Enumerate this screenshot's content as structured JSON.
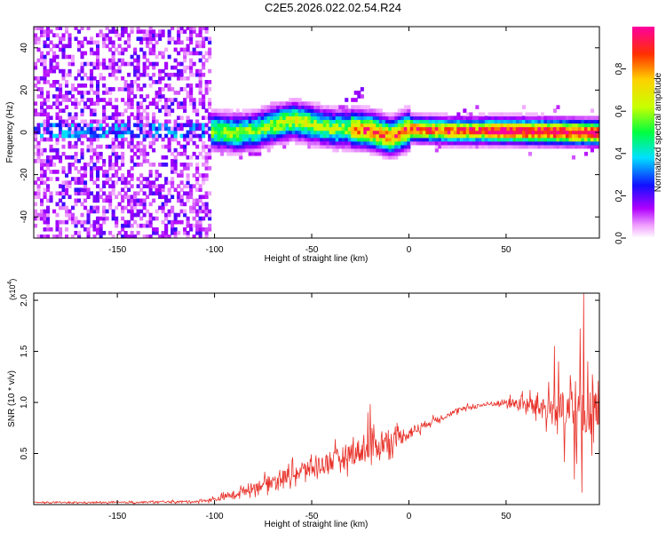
{
  "title": "C2E5.2026.022.02.54.R24",
  "colors": {
    "line": "#e8322a",
    "axis": "#000000",
    "background": "#ffffff"
  },
  "chart_data": [
    {
      "type": "heatmap",
      "name": "spectrogram",
      "xlabel": "Height of straight line (km)",
      "ylabel": "Frequency (Hz)",
      "xlim": [
        -193,
        98
      ],
      "ylim": [
        -50,
        50
      ],
      "xticks": [
        -150,
        -100,
        -50,
        0,
        50
      ],
      "yticks": [
        -40,
        -20,
        0,
        20,
        40
      ],
      "colorbar": {
        "label": "Normalized spectral amplitude",
        "range": [
          0.0,
          1.0
        ],
        "ticks": [
          0.0,
          0.2,
          0.4,
          0.6,
          0.8
        ],
        "tick_labels": [
          "0.0",
          "0.2",
          "0.4",
          "0.6",
          "0.8"
        ],
        "stops": [
          {
            "v": 0.0,
            "color": "#ffffff"
          },
          {
            "v": 0.06,
            "color": "#f0a0ff"
          },
          {
            "v": 0.14,
            "color": "#b000ff"
          },
          {
            "v": 0.25,
            "color": "#1010ff"
          },
          {
            "v": 0.38,
            "color": "#00e0ff"
          },
          {
            "v": 0.5,
            "color": "#00ff40"
          },
          {
            "v": 0.62,
            "color": "#c8ff00"
          },
          {
            "v": 0.75,
            "color": "#ffd000"
          },
          {
            "v": 0.87,
            "color": "#ff3000"
          },
          {
            "v": 1.0,
            "color": "#ff00a0"
          }
        ]
      },
      "ridge": [
        {
          "x": -193,
          "y": 0
        },
        {
          "x": -100,
          "y": 0
        },
        {
          "x": -90,
          "y": -1
        },
        {
          "x": -80,
          "y": 0
        },
        {
          "x": -70,
          "y": 3
        },
        {
          "x": -60,
          "y": 5
        },
        {
          "x": -50,
          "y": 3
        },
        {
          "x": -40,
          "y": 1
        },
        {
          "x": -30,
          "y": 1
        },
        {
          "x": -20,
          "y": 0
        },
        {
          "x": -10,
          "y": -3
        },
        {
          "x": 0,
          "y": 1
        },
        {
          "x": 20,
          "y": 0
        },
        {
          "x": 50,
          "y": 0
        },
        {
          "x": 98,
          "y": -1
        }
      ]
    },
    {
      "type": "line",
      "name": "snr",
      "xlabel": "Height of straight line (km)",
      "ylabel": "SNR (10 * v/v)",
      "multiplier": "(x10",
      "multiplier_exp": "4",
      "multiplier_close": ")",
      "xlim": [
        -193,
        98
      ],
      "ylim": [
        0,
        2.07
      ],
      "xticks": [
        -150,
        -100,
        -50,
        0,
        50
      ],
      "yticks": [
        0.5,
        1.0,
        1.5,
        2.0
      ],
      "ytick_labels": [
        "0.5",
        "1.0",
        "1.5",
        "2.0"
      ],
      "series": [
        {
          "name": "SNR",
          "points": [
            {
              "x": -193,
              "y": 0.02
            },
            {
              "x": -150,
              "y": 0.02
            },
            {
              "x": -110,
              "y": 0.03
            },
            {
              "x": -100,
              "y": 0.05
            },
            {
              "x": -90,
              "y": 0.1
            },
            {
              "x": -80,
              "y": 0.17
            },
            {
              "x": -70,
              "y": 0.23
            },
            {
              "x": -60,
              "y": 0.3
            },
            {
              "x": -50,
              "y": 0.36
            },
            {
              "x": -40,
              "y": 0.42
            },
            {
              "x": -30,
              "y": 0.5
            },
            {
              "x": -20,
              "y": 0.55
            },
            {
              "x": -10,
              "y": 0.62
            },
            {
              "x": 0,
              "y": 0.7
            },
            {
              "x": 10,
              "y": 0.8
            },
            {
              "x": 20,
              "y": 0.88
            },
            {
              "x": 30,
              "y": 0.95
            },
            {
              "x": 40,
              "y": 0.98
            },
            {
              "x": 50,
              "y": 1.0
            },
            {
              "x": 60,
              "y": 0.98
            },
            {
              "x": 70,
              "y": 0.95
            },
            {
              "x": 80,
              "y": 0.9
            },
            {
              "x": 90,
              "y": 0.85
            },
            {
              "x": 98,
              "y": 0.95
            }
          ],
          "noise": [
            {
              "x": -193,
              "a": 0.01
            },
            {
              "x": -110,
              "a": 0.02
            },
            {
              "x": -100,
              "a": 0.04
            },
            {
              "x": -80,
              "a": 0.1
            },
            {
              "x": -60,
              "a": 0.16
            },
            {
              "x": -40,
              "a": 0.2
            },
            {
              "x": -20,
              "a": 0.25
            },
            {
              "x": -5,
              "a": 0.16
            },
            {
              "x": 10,
              "a": 0.06
            },
            {
              "x": 30,
              "a": 0.04
            },
            {
              "x": 45,
              "a": 0.05
            },
            {
              "x": 55,
              "a": 0.1
            },
            {
              "x": 70,
              "a": 0.25
            },
            {
              "x": 80,
              "a": 0.4
            },
            {
              "x": 88,
              "a": 0.55
            },
            {
              "x": 98,
              "a": 0.35
            }
          ],
          "peaks": [
            {
              "x": 90,
              "y": 2.07
            },
            {
              "x": 88,
              "y": 1.72
            },
            {
              "x": 85,
              "y": 1.48
            },
            {
              "x": 75,
              "y": 1.55
            },
            {
              "x": 77,
              "y": 1.4
            },
            {
              "x": 92,
              "y": 1.4
            },
            {
              "x": 89,
              "y": 0.12
            },
            {
              "x": 85,
              "y": 0.25
            },
            {
              "x": 80,
              "y": 0.42
            },
            {
              "x": -20,
              "y": 0.98
            },
            {
              "x": -21,
              "y": 0.9
            }
          ]
        }
      ]
    }
  ]
}
